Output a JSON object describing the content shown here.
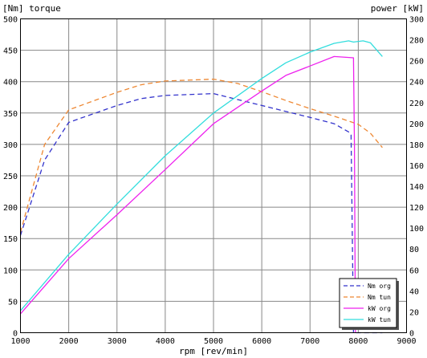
{
  "chart_data": {
    "type": "line",
    "title_left": "[Nm]  torque",
    "title_right": "power [kW]",
    "xlabel": "rpm [rev/min]",
    "xlim": [
      1000,
      9000
    ],
    "ylim_left": [
      0,
      500
    ],
    "ylim_right": [
      0,
      300
    ],
    "x_ticks": [
      1000,
      2000,
      3000,
      4000,
      5000,
      6000,
      7000,
      8000,
      9000
    ],
    "y_left_ticks": [
      0,
      50,
      100,
      150,
      200,
      250,
      300,
      350,
      400,
      450,
      500
    ],
    "y_right_ticks": [
      0,
      20,
      40,
      60,
      80,
      100,
      120,
      140,
      160,
      180,
      200,
      220,
      240,
      260,
      280,
      300
    ],
    "grid": true,
    "legend_position": "bottom-right",
    "series": [
      {
        "name": "Nm org",
        "axis": "left",
        "color": "#3333cc",
        "dash": "6,4",
        "x": [
          1000,
          1500,
          2000,
          3000,
          3500,
          4000,
          5000,
          6000,
          7000,
          7500,
          7800,
          7850,
          7900,
          7950,
          8500
        ],
        "y": [
          155,
          275,
          335,
          362,
          373,
          378,
          381,
          362,
          343,
          333,
          320,
          315,
          0,
          0,
          0
        ]
      },
      {
        "name": "Nm tun",
        "axis": "left",
        "color": "#ee8833",
        "dash": "6,4",
        "x": [
          1000,
          1500,
          2000,
          3000,
          3500,
          4000,
          5000,
          5500,
          6000,
          6500,
          7000,
          7500,
          8000,
          8250,
          8500
        ],
        "y": [
          160,
          300,
          355,
          383,
          395,
          401,
          404,
          397,
          384,
          370,
          357,
          345,
          332,
          318,
          295
        ]
      },
      {
        "name": "kW org",
        "axis": "left",
        "color": "#ee22ee",
        "dash": "",
        "x": [
          1000,
          2000,
          3000,
          4000,
          5000,
          6000,
          6500,
          7000,
          7500,
          7900,
          7920,
          7940
        ],
        "y": [
          30,
          118,
          188,
          260,
          333,
          385,
          410,
          425,
          440,
          438,
          300,
          0
        ]
      },
      {
        "name": "kW tun",
        "axis": "left",
        "color": "#33dddd",
        "dash": "",
        "x": [
          1000,
          2000,
          3000,
          4000,
          5000,
          6000,
          6500,
          7000,
          7500,
          7800,
          7900,
          8100,
          8250,
          8500
        ],
        "y": [
          35,
          125,
          205,
          282,
          350,
          405,
          430,
          447,
          461,
          465,
          463,
          465,
          462,
          440
        ]
      }
    ]
  }
}
